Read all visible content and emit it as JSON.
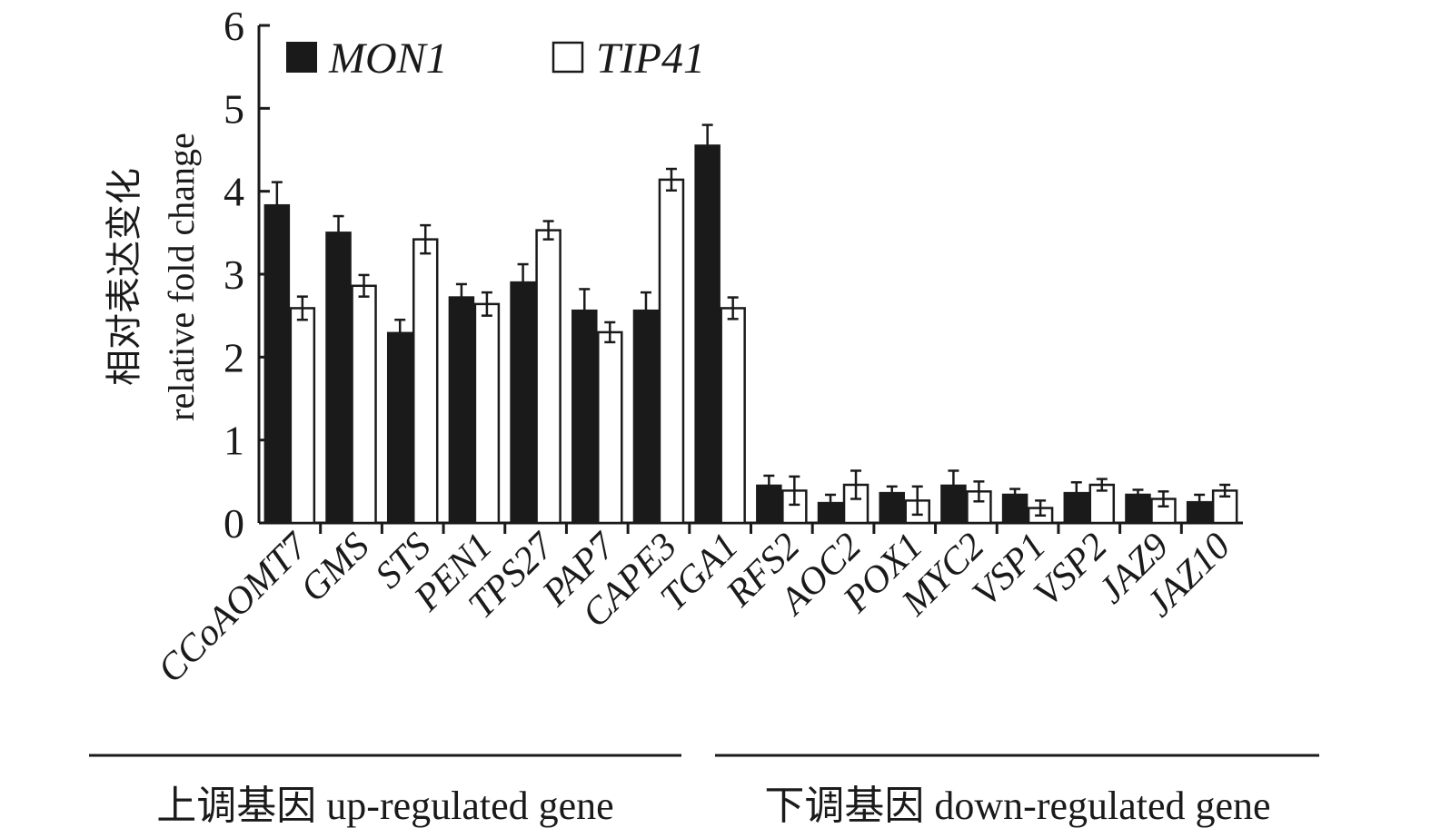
{
  "chart_data": {
    "type": "bar",
    "ylabel_cn": "相对表达变化",
    "ylabel_en": "relative fold change",
    "ylim": [
      0,
      6
    ],
    "yticks": [
      "0",
      "1",
      "2",
      "3",
      "4",
      "5",
      "6"
    ],
    "grid": false,
    "legend_position": "top-left",
    "categories": [
      "CCoAOMT7",
      "GMS",
      "STS",
      "PEN1",
      "TPS27",
      "PAP7",
      "CAPE3",
      "TGA1",
      "RFS2",
      "AOC2",
      "POX1",
      "MYC2",
      "VSP1",
      "VSP2",
      "JAZ9",
      "JAZ10"
    ],
    "series": [
      {
        "name": "MON1",
        "color": "#1a1a1a",
        "values": [
          3.83,
          3.5,
          2.29,
          2.72,
          2.9,
          2.56,
          2.56,
          4.55,
          0.45,
          0.24,
          0.36,
          0.45,
          0.34,
          0.36,
          0.34,
          0.25
        ],
        "errors": [
          0.28,
          0.2,
          0.16,
          0.16,
          0.22,
          0.26,
          0.22,
          0.25,
          0.12,
          0.1,
          0.08,
          0.18,
          0.07,
          0.13,
          0.06,
          0.09
        ]
      },
      {
        "name": "TIP41",
        "color": "#ffffff",
        "values": [
          2.59,
          2.86,
          3.42,
          2.64,
          3.53,
          2.3,
          4.14,
          2.59,
          0.39,
          0.46,
          0.27,
          0.38,
          0.18,
          0.46,
          0.29,
          0.39
        ],
        "errors": [
          0.14,
          0.13,
          0.17,
          0.14,
          0.11,
          0.12,
          0.13,
          0.13,
          0.17,
          0.17,
          0.17,
          0.12,
          0.09,
          0.07,
          0.09,
          0.07
        ]
      }
    ],
    "groups": [
      {
        "label": "上调基因 up-regulated gene",
        "count": 8
      },
      {
        "label": "下调基因 down-regulated gene",
        "count": 8
      }
    ]
  }
}
